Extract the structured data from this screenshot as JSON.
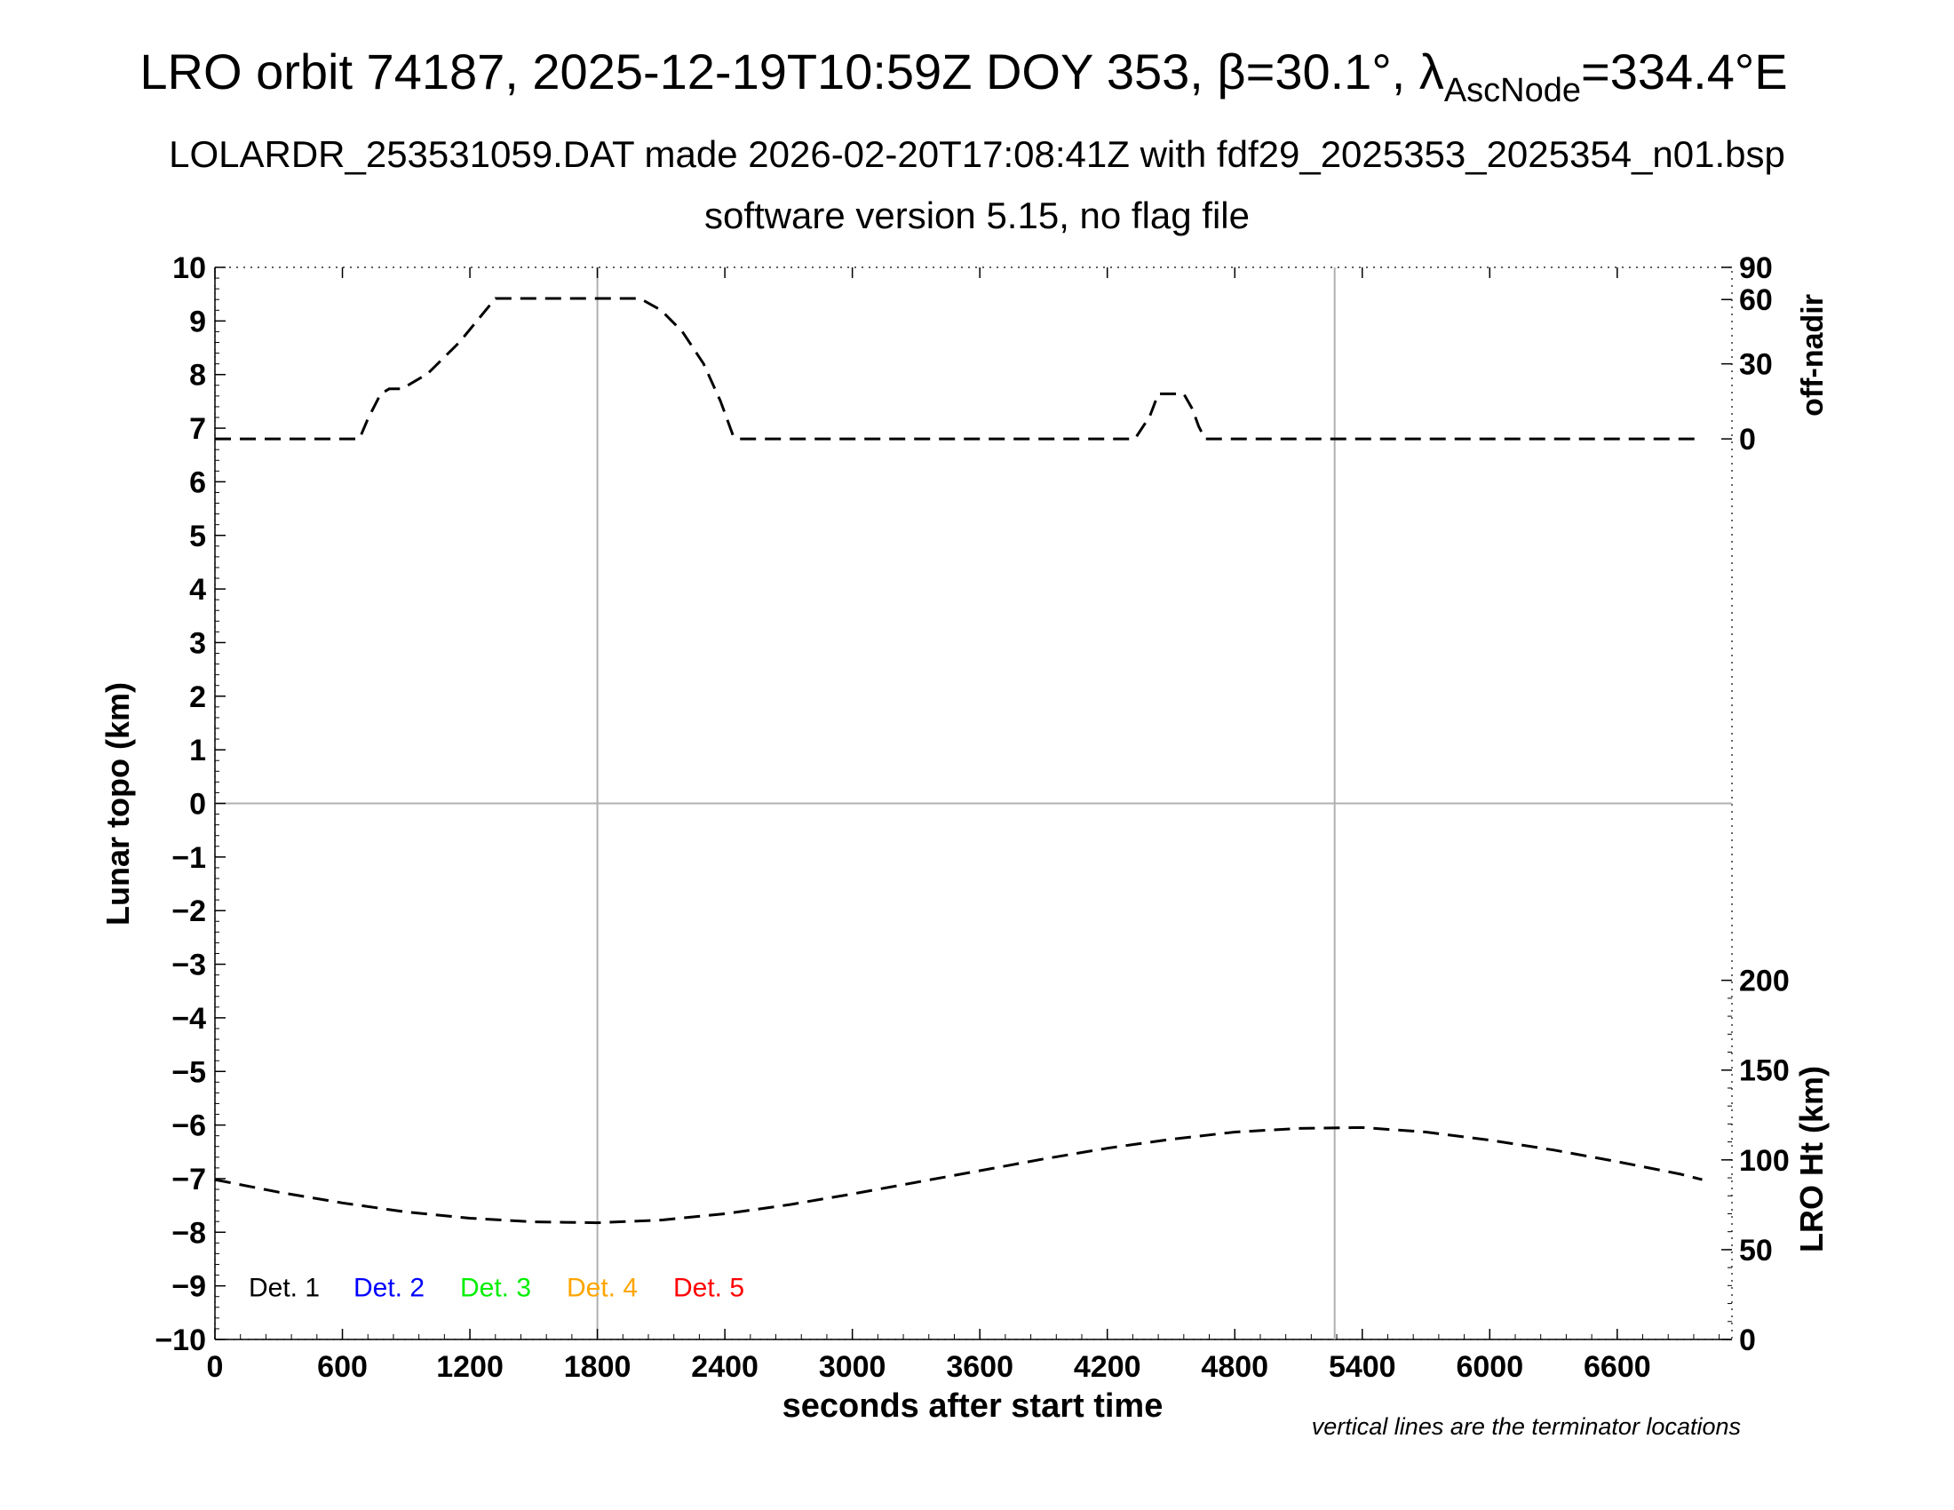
{
  "chart_data": {
    "type": "line",
    "title": {
      "prefix": "LRO orbit 74187, 2025-12-19T10:59Z DOY 353, β=30.1°, λ",
      "subscript": "AscNode",
      "suffix": "=334.4°E"
    },
    "subtitle1": "LOLARDR_253531059.DAT made 2026-02-20T17:08:41Z with fdf29_2025353_2025354_n01.bsp",
    "subtitle2": "software version 5.15, no flag file",
    "xlabel": "seconds after start time",
    "ylabel_left": "Lunar topo (km)",
    "ylabel_right_top": "off-nadir",
    "ylabel_right_bottom": "LRO Ht (km)",
    "xlim": [
      0,
      7140
    ],
    "ylim_left": [
      -10,
      10
    ],
    "x_ticks": [
      "0",
      "600",
      "1200",
      "1800",
      "2400",
      "3000",
      "3600",
      "4200",
      "4800",
      "5400",
      "6000",
      "6600"
    ],
    "y_ticks_left": [
      "10",
      "9",
      "8",
      "7",
      "6",
      "5",
      "4",
      "3",
      "2",
      "1",
      "0",
      "−1",
      "−2",
      "−3",
      "−4",
      "−5",
      "−6",
      "−7",
      "−8",
      "−9",
      "−10"
    ],
    "off_nadir_ticks": [
      "90",
      "60",
      "30",
      "0"
    ],
    "ht_ticks": [
      "200",
      "150",
      "100",
      "50",
      "0"
    ],
    "terminators_x": [
      1800,
      5270
    ],
    "legend": [
      {
        "label": "Det. 1",
        "color": "#000000"
      },
      {
        "label": "Det. 2",
        "color": "#0000ff"
      },
      {
        "label": "Det. 3",
        "color": "#00ee00"
      },
      {
        "label": "Det. 4",
        "color": "#ffa500"
      },
      {
        "label": "Det. 5",
        "color": "#ff0000"
      }
    ],
    "note": "vertical lines are the terminator locations",
    "series": [
      {
        "name": "off-nadir",
        "axis": "off-nadir (deg)",
        "x": [
          0,
          680,
          720,
          780,
          820,
          880,
          1000,
          1150,
          1320,
          1500,
          1800,
          2000,
          2100,
          2200,
          2300,
          2380,
          2440,
          2460,
          2600,
          3000,
          3600,
          4200,
          4300,
          4330,
          4400,
          4440,
          4560,
          4600,
          4630,
          4660,
          5000,
          5500,
          6000,
          6500,
          7000
        ],
        "y": [
          0,
          0,
          8,
          18,
          20,
          20,
          26,
          40,
          61,
          61,
          61,
          61,
          55,
          45,
          30,
          15,
          1,
          0,
          0,
          0,
          0,
          0,
          0,
          0,
          9,
          18,
          18,
          12,
          5,
          0,
          0,
          0,
          0,
          0,
          0
        ]
      },
      {
        "name": "LRO Ht",
        "axis": "LRO Ht (km)",
        "x": [
          0,
          300,
          600,
          900,
          1200,
          1500,
          1800,
          2100,
          2400,
          2700,
          3000,
          3300,
          3600,
          3900,
          4200,
          4500,
          4800,
          5100,
          5400,
          5700,
          6000,
          6300,
          6600,
          6900,
          7000
        ],
        "y": [
          89,
          82,
          76,
          71,
          67.5,
          65.5,
          65,
          66.5,
          70,
          75,
          81,
          87.5,
          94,
          100.5,
          106.5,
          111.5,
          115.5,
          117.5,
          118,
          115.5,
          111,
          105.5,
          99,
          92,
          89
        ]
      }
    ]
  }
}
